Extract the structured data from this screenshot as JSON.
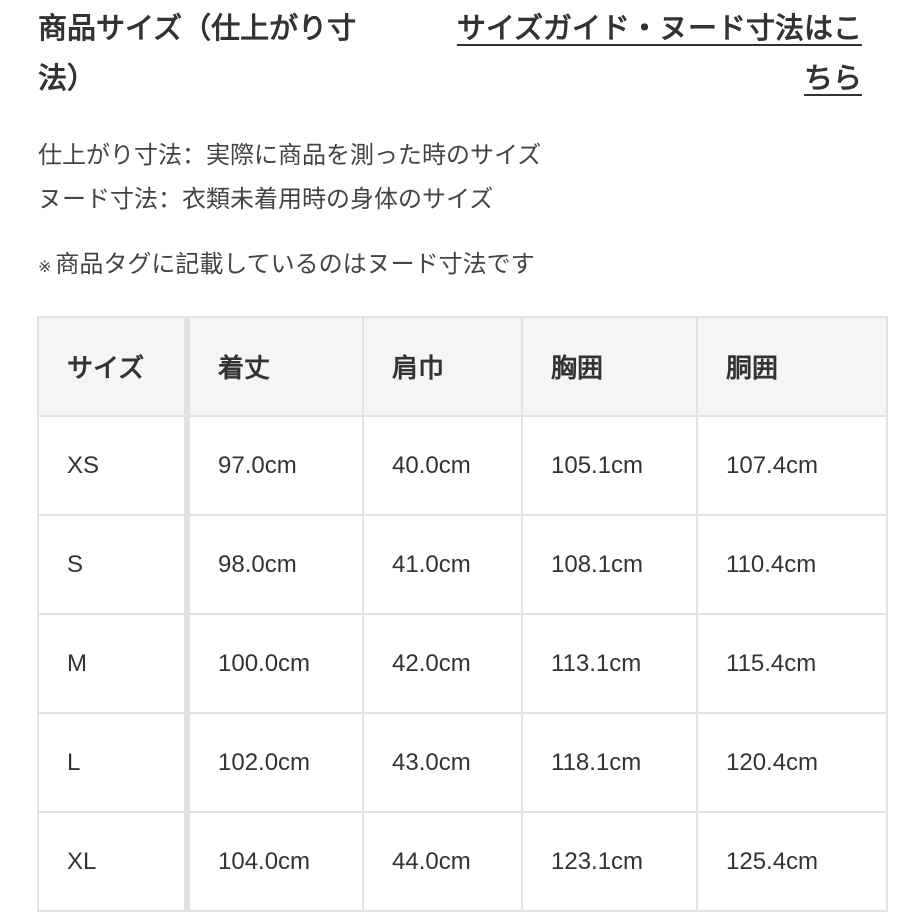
{
  "header": {
    "title": "商品サイズ（仕上がり寸法）",
    "guide_link": "サイズガイド・ヌード寸法はこちら"
  },
  "description": [
    "仕上がり寸法：実際に商品を測った時のサイズ",
    "ヌード寸法：衣類未着用時の身体のサイズ"
  ],
  "note": {
    "mark": "※",
    "text": "商品タグに記載しているのはヌード寸法です"
  },
  "table": {
    "headers": [
      "サイズ",
      "着丈",
      "肩巾",
      "胸囲",
      "胴囲"
    ],
    "rows": [
      [
        "XS",
        "97.0cm",
        "40.0cm",
        "105.1cm",
        "107.4cm"
      ],
      [
        "S",
        "98.0cm",
        "41.0cm",
        "108.1cm",
        "110.4cm"
      ],
      [
        "M",
        "100.0cm",
        "42.0cm",
        "113.1cm",
        "115.4cm"
      ],
      [
        "L",
        "102.0cm",
        "43.0cm",
        "118.1cm",
        "120.4cm"
      ],
      [
        "XL",
        "104.0cm",
        "44.0cm",
        "123.1cm",
        "125.4cm"
      ]
    ]
  }
}
